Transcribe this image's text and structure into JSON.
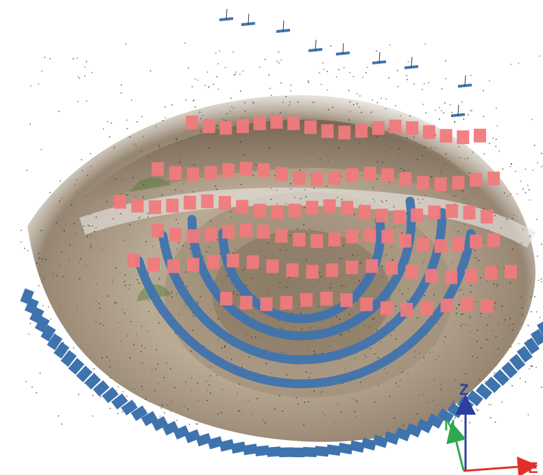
{
  "scene": {
    "description_visible": "",
    "colors": {
      "background": "#ffffff",
      "camera_blue": "#3f73ad",
      "camera_red": "#f07a7c",
      "axis_z": "#2d3e9e",
      "axis_n": "#2fa84f",
      "axis_e": "#e0302a",
      "point_dark": "#2a2a2a",
      "terrain_light": "#c9b9a4",
      "terrain_dark": "#6b5a46"
    }
  },
  "axes": {
    "z_label": "Z",
    "n_label": "N",
    "e_label": "E"
  }
}
